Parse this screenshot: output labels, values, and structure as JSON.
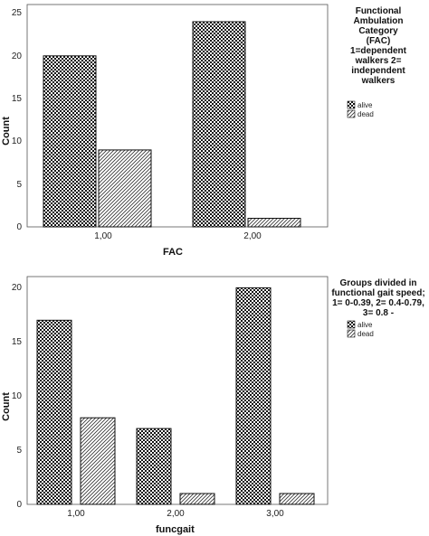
{
  "chart_data": [
    {
      "type": "bar",
      "xlabel": "FAC",
      "ylabel": "Count",
      "categories": [
        "1,00",
        "2,00"
      ],
      "series": [
        {
          "name": "alive",
          "values": [
            20,
            24
          ]
        },
        {
          "name": "dead",
          "values": [
            9,
            1
          ]
        }
      ],
      "ylim": [
        0,
        26
      ],
      "yticks": [
        "0",
        "5",
        "10",
        "15",
        "20",
        "25"
      ],
      "grid": false,
      "legend": {
        "title_lines": [
          "Functional",
          "Ambulation",
          "Category",
          "(FAC)",
          "1=dependent",
          "walkers 2=",
          "independent",
          "walkers"
        ],
        "placement": "right"
      }
    },
    {
      "type": "bar",
      "xlabel": "funcgait",
      "ylabel": "Count",
      "categories": [
        "1,00",
        "2,00",
        "3,00"
      ],
      "series": [
        {
          "name": "alive",
          "values": [
            17,
            7,
            20
          ]
        },
        {
          "name": "dead",
          "values": [
            8,
            1,
            1
          ]
        }
      ],
      "ylim": [
        0,
        21
      ],
      "yticks": [
        "0",
        "5",
        "10",
        "15",
        "20"
      ],
      "grid": false,
      "legend": {
        "title_lines": [
          "Groups divided in",
          "functional gait speed;",
          "1= 0-0.39, 2= 0.4-0.79,",
          "3= 0.8 -"
        ],
        "placement": "right"
      }
    }
  ]
}
